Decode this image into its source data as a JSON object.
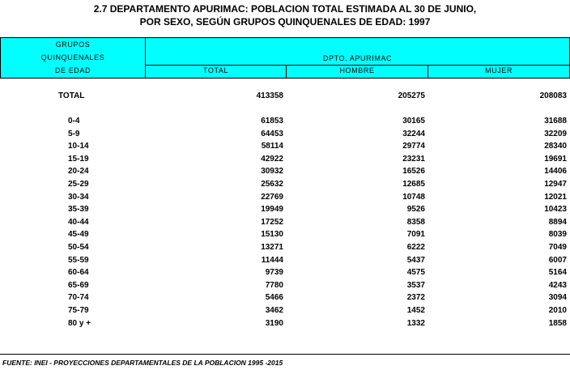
{
  "header": {
    "title": [
      "2.7 DEPARTAMENTO APURIMAC: POBLACION TOTAL ESTIMADA AL 30 DE JUNIO,",
      "POR  SEXO, SEGÚN GRUPOS QUINQUENALES DE EDAD: 1997"
    ]
  },
  "table": {
    "row_header": [
      "GRUPOS",
      "QUINQUENALES",
      "DE EDAD"
    ],
    "group_header": "DPTO. APURIMAC",
    "columns": [
      "TOTAL",
      "HOMBRE",
      "MUJER"
    ],
    "total_row": [
      "TOTAL",
      413358,
      205275,
      208083
    ],
    "rows": [
      [
        "0-4",
        61853,
        30165,
        31688
      ],
      [
        "5-9",
        64453,
        32244,
        32209
      ],
      [
        "10-14",
        58114,
        29774,
        28340
      ],
      [
        "15-19",
        42922,
        23231,
        19691
      ],
      [
        "20-24",
        30932,
        16526,
        14406
      ],
      [
        "25-29",
        25632,
        12685,
        12947
      ],
      [
        "30-34",
        22769,
        10748,
        12021
      ],
      [
        "35-39",
        19949,
        9526,
        10423
      ],
      [
        "40-44",
        17252,
        8358,
        8894
      ],
      [
        "45-49",
        15130,
        7091,
        8039
      ],
      [
        "50-54",
        13271,
        6222,
        7049
      ],
      [
        "55-59",
        11444,
        5437,
        6007
      ],
      [
        "60-64",
        9739,
        4575,
        5164
      ],
      [
        "65-69",
        7780,
        3537,
        4243
      ],
      [
        "70-74",
        5466,
        2372,
        3094
      ],
      [
        "75-79",
        3462,
        1452,
        2010
      ],
      [
        "80 y +",
        3190,
        1332,
        1858
      ]
    ]
  },
  "footer": {
    "source": "FUENTE: INEI - PROYECCIONES DEPARTAMENTALES DE LA POBLACION 1995 -2015"
  }
}
